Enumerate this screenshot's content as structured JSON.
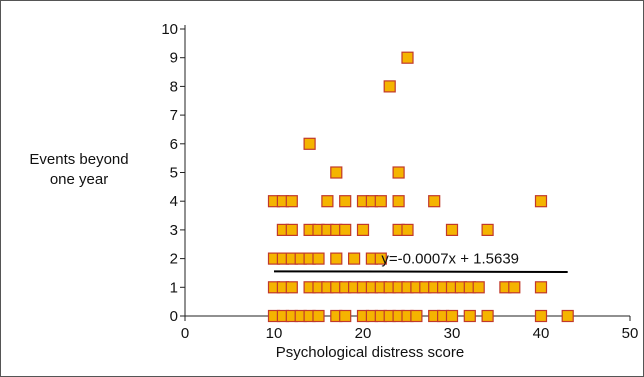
{
  "chart_data": {
    "type": "scatter",
    "title": "",
    "xlabel": "Psychological distress score",
    "ylabel_lines": [
      "Events beyond",
      "one year"
    ],
    "xlim": [
      0,
      50
    ],
    "ylim": [
      0,
      10
    ],
    "xticks": [
      0,
      10,
      20,
      30,
      40,
      50
    ],
    "yticks": [
      0,
      1,
      2,
      3,
      4,
      5,
      6,
      7,
      8,
      9,
      10
    ],
    "grid": false,
    "marker_color": "#f5b400",
    "marker_edge_color": "#c0392b",
    "trendline": {
      "equation": "y=-0.0007x + 1.5639",
      "slope": -0.0007,
      "intercept": 1.5639,
      "x_range": [
        10,
        43
      ],
      "color": "#000000"
    },
    "points": [
      {
        "x": 10,
        "y": 0
      },
      {
        "x": 11,
        "y": 0
      },
      {
        "x": 12,
        "y": 0
      },
      {
        "x": 13,
        "y": 0
      },
      {
        "x": 14,
        "y": 0
      },
      {
        "x": 15,
        "y": 0
      },
      {
        "x": 17,
        "y": 0
      },
      {
        "x": 18,
        "y": 0
      },
      {
        "x": 20,
        "y": 0
      },
      {
        "x": 21,
        "y": 0
      },
      {
        "x": 22,
        "y": 0
      },
      {
        "x": 23,
        "y": 0
      },
      {
        "x": 24,
        "y": 0
      },
      {
        "x": 25,
        "y": 0
      },
      {
        "x": 26,
        "y": 0
      },
      {
        "x": 28,
        "y": 0
      },
      {
        "x": 29,
        "y": 0
      },
      {
        "x": 30,
        "y": 0
      },
      {
        "x": 32,
        "y": 0
      },
      {
        "x": 34,
        "y": 0
      },
      {
        "x": 40,
        "y": 0
      },
      {
        "x": 43,
        "y": 0
      },
      {
        "x": 10,
        "y": 1
      },
      {
        "x": 11,
        "y": 1
      },
      {
        "x": 12,
        "y": 1
      },
      {
        "x": 14,
        "y": 1
      },
      {
        "x": 15,
        "y": 1
      },
      {
        "x": 16,
        "y": 1
      },
      {
        "x": 17,
        "y": 1
      },
      {
        "x": 18,
        "y": 1
      },
      {
        "x": 19,
        "y": 1
      },
      {
        "x": 20,
        "y": 1
      },
      {
        "x": 21,
        "y": 1
      },
      {
        "x": 22,
        "y": 1
      },
      {
        "x": 23,
        "y": 1
      },
      {
        "x": 24,
        "y": 1
      },
      {
        "x": 25,
        "y": 1
      },
      {
        "x": 26,
        "y": 1
      },
      {
        "x": 27,
        "y": 1
      },
      {
        "x": 28,
        "y": 1
      },
      {
        "x": 29,
        "y": 1
      },
      {
        "x": 30,
        "y": 1
      },
      {
        "x": 31,
        "y": 1
      },
      {
        "x": 32,
        "y": 1
      },
      {
        "x": 33,
        "y": 1
      },
      {
        "x": 36,
        "y": 1
      },
      {
        "x": 37,
        "y": 1
      },
      {
        "x": 40,
        "y": 1
      },
      {
        "x": 10,
        "y": 2
      },
      {
        "x": 11,
        "y": 2
      },
      {
        "x": 12,
        "y": 2
      },
      {
        "x": 13,
        "y": 2
      },
      {
        "x": 14,
        "y": 2
      },
      {
        "x": 15,
        "y": 2
      },
      {
        "x": 17,
        "y": 2
      },
      {
        "x": 19,
        "y": 2
      },
      {
        "x": 21,
        "y": 2
      },
      {
        "x": 22,
        "y": 2
      },
      {
        "x": 11,
        "y": 3
      },
      {
        "x": 12,
        "y": 3
      },
      {
        "x": 14,
        "y": 3
      },
      {
        "x": 15,
        "y": 3
      },
      {
        "x": 16,
        "y": 3
      },
      {
        "x": 17,
        "y": 3
      },
      {
        "x": 18,
        "y": 3
      },
      {
        "x": 20,
        "y": 3
      },
      {
        "x": 24,
        "y": 3
      },
      {
        "x": 25,
        "y": 3
      },
      {
        "x": 30,
        "y": 3
      },
      {
        "x": 34,
        "y": 3
      },
      {
        "x": 10,
        "y": 4
      },
      {
        "x": 11,
        "y": 4
      },
      {
        "x": 12,
        "y": 4
      },
      {
        "x": 16,
        "y": 4
      },
      {
        "x": 18,
        "y": 4
      },
      {
        "x": 20,
        "y": 4
      },
      {
        "x": 21,
        "y": 4
      },
      {
        "x": 22,
        "y": 4
      },
      {
        "x": 24,
        "y": 4
      },
      {
        "x": 28,
        "y": 4
      },
      {
        "x": 40,
        "y": 4
      },
      {
        "x": 17,
        "y": 5
      },
      {
        "x": 24,
        "y": 5
      },
      {
        "x": 14,
        "y": 6
      },
      {
        "x": 23,
        "y": 8
      },
      {
        "x": 25,
        "y": 9
      }
    ]
  }
}
